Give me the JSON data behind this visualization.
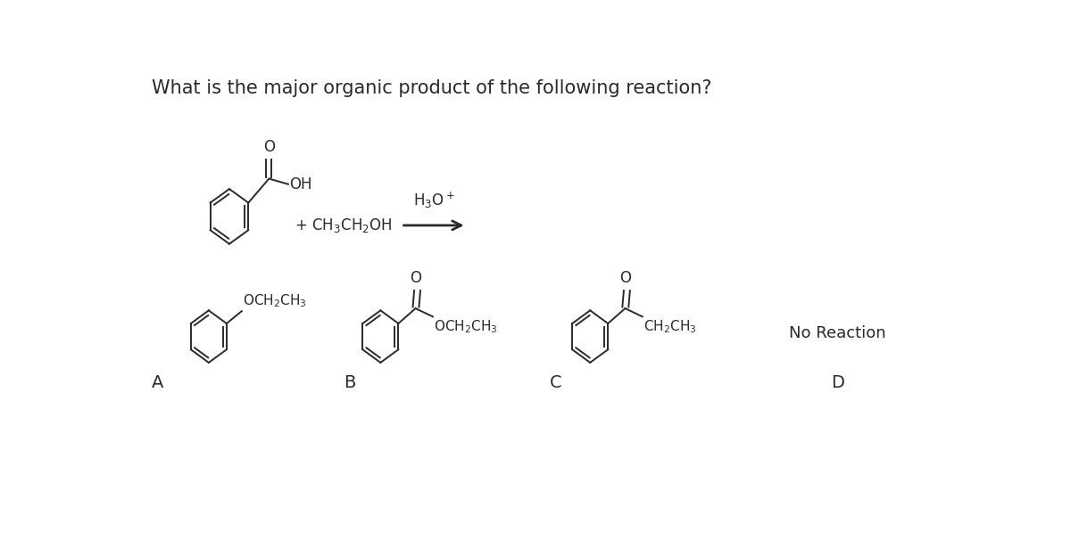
{
  "title": "What is the major organic product of the following reaction?",
  "background_color": "#ffffff",
  "text_color": "#2a2a2a",
  "label_A": "A",
  "label_B": "B",
  "label_C": "C",
  "label_D": "D",
  "no_reaction_text": "No Reaction",
  "title_fontsize": 15,
  "label_fontsize": 14,
  "chem_fontsize": 12
}
